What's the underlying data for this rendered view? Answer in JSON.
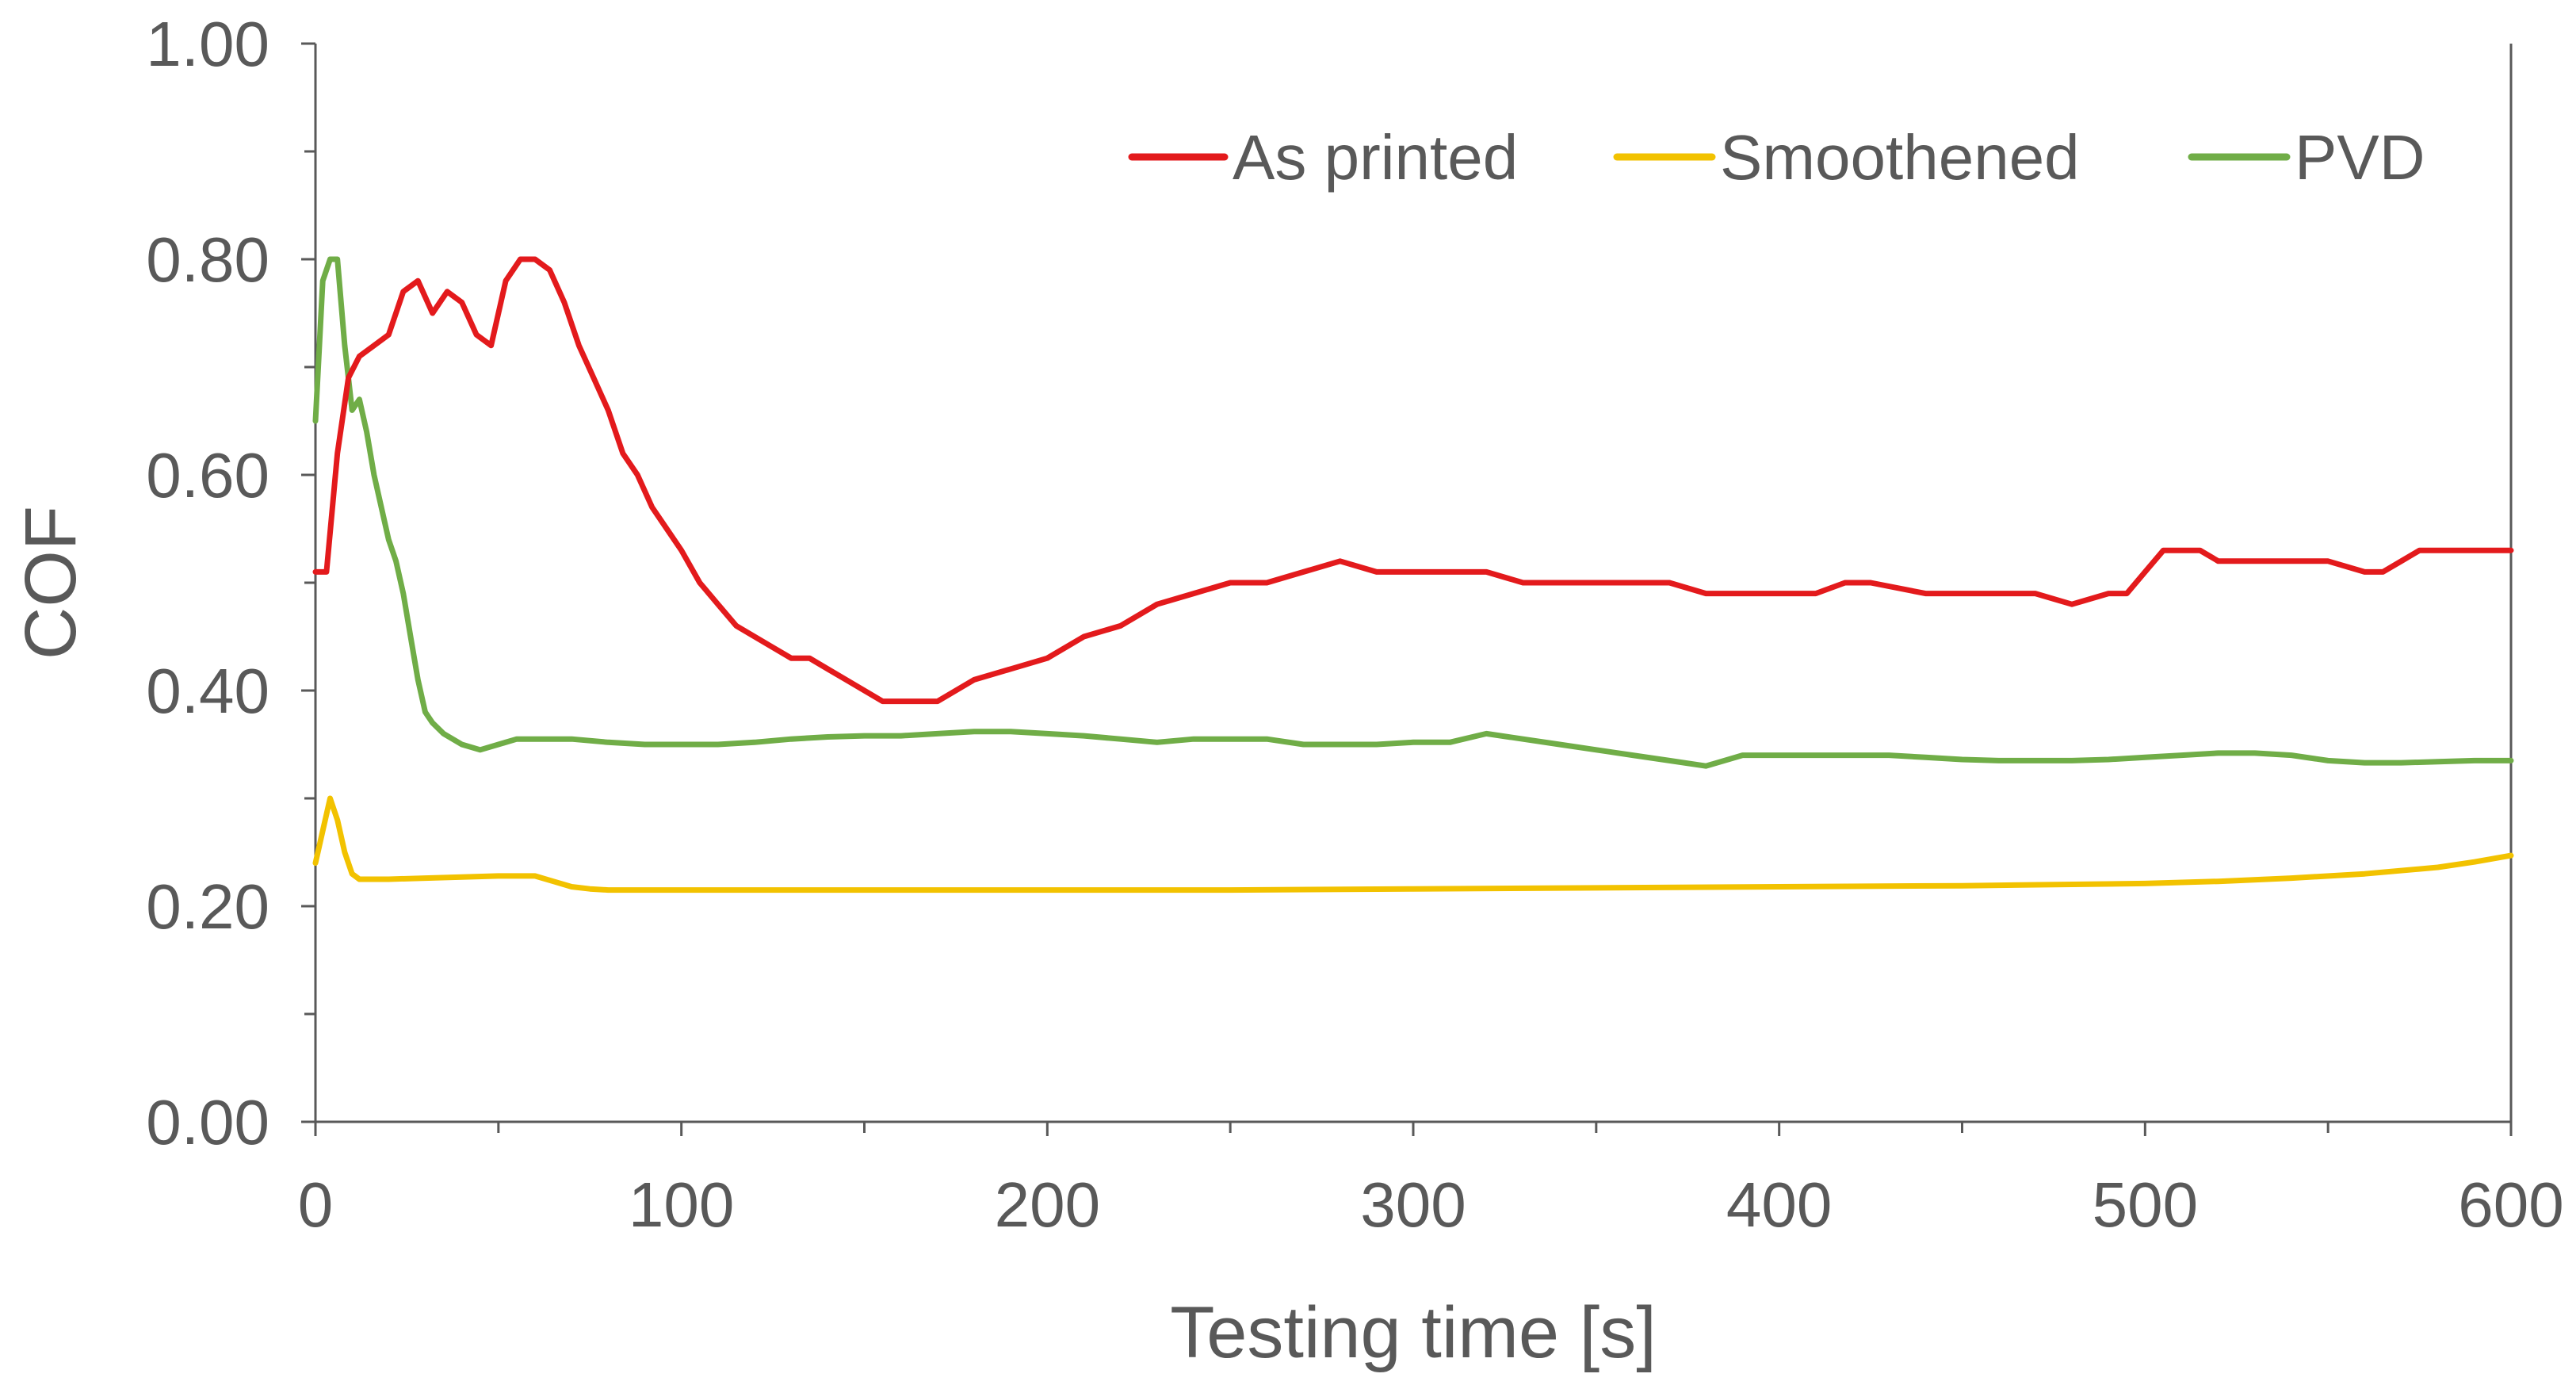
{
  "chart_data": {
    "type": "line",
    "title": "",
    "xlabel": "Testing time [s]",
    "ylabel": "COF",
    "xlim": [
      0,
      600
    ],
    "ylim": [
      0,
      1
    ],
    "x_ticks": [
      0,
      100,
      200,
      300,
      400,
      500,
      600
    ],
    "x_tick_labels": [
      "0",
      "100",
      "200",
      "300",
      "400",
      "500",
      "600"
    ],
    "y_ticks": [
      0,
      0.2,
      0.4,
      0.6,
      0.8,
      1.0
    ],
    "y_tick_labels": [
      "0.00",
      "0.20",
      "0.40",
      "0.60",
      "0.80",
      "1.00"
    ],
    "grid": false,
    "legend_position": "top-right",
    "series": [
      {
        "name": "As printed",
        "color": "#e31a1c",
        "x": [
          0,
          3,
          6,
          9,
          12,
          16,
          20,
          24,
          28,
          32,
          36,
          40,
          44,
          48,
          52,
          56,
          60,
          64,
          68,
          72,
          76,
          80,
          84,
          88,
          92,
          96,
          100,
          105,
          110,
          115,
          120,
          125,
          130,
          135,
          140,
          145,
          150,
          155,
          160,
          165,
          170,
          175,
          180,
          190,
          200,
          210,
          220,
          230,
          240,
          250,
          260,
          270,
          280,
          290,
          300,
          310,
          320,
          330,
          340,
          350,
          360,
          370,
          380,
          390,
          400,
          410,
          418,
          425,
          440,
          460,
          470,
          480,
          490,
          495,
          500,
          505,
          510,
          515,
          520,
          530,
          540,
          550,
          560,
          565,
          570,
          575,
          580,
          590,
          600
        ],
        "y": [
          0.51,
          0.51,
          0.62,
          0.69,
          0.71,
          0.72,
          0.73,
          0.77,
          0.78,
          0.75,
          0.77,
          0.76,
          0.73,
          0.72,
          0.78,
          0.8,
          0.8,
          0.79,
          0.76,
          0.72,
          0.69,
          0.66,
          0.62,
          0.6,
          0.57,
          0.55,
          0.53,
          0.5,
          0.48,
          0.46,
          0.45,
          0.44,
          0.43,
          0.43,
          0.42,
          0.41,
          0.4,
          0.39,
          0.39,
          0.39,
          0.39,
          0.4,
          0.41,
          0.42,
          0.43,
          0.45,
          0.46,
          0.48,
          0.49,
          0.5,
          0.5,
          0.51,
          0.52,
          0.51,
          0.51,
          0.51,
          0.51,
          0.5,
          0.5,
          0.5,
          0.5,
          0.5,
          0.49,
          0.49,
          0.49,
          0.49,
          0.5,
          0.5,
          0.49,
          0.49,
          0.49,
          0.48,
          0.49,
          0.49,
          0.51,
          0.53,
          0.53,
          0.53,
          0.52,
          0.52,
          0.52,
          0.52,
          0.51,
          0.51,
          0.52,
          0.53,
          0.53,
          0.53,
          0.53
        ]
      },
      {
        "name": "Smoothened",
        "color": "#f2c200",
        "x": [
          0,
          2,
          4,
          6,
          8,
          10,
          12,
          15,
          20,
          30,
          40,
          50,
          60,
          65,
          70,
          75,
          80,
          100,
          150,
          200,
          250,
          300,
          350,
          400,
          450,
          500,
          520,
          540,
          560,
          580,
          590,
          600
        ],
        "y": [
          0.24,
          0.27,
          0.3,
          0.28,
          0.25,
          0.23,
          0.225,
          0.225,
          0.225,
          0.226,
          0.227,
          0.228,
          0.228,
          0.223,
          0.218,
          0.216,
          0.215,
          0.215,
          0.215,
          0.215,
          0.215,
          0.216,
          0.217,
          0.218,
          0.219,
          0.221,
          0.223,
          0.226,
          0.23,
          0.236,
          0.241,
          0.247
        ]
      },
      {
        "name": "PVD",
        "color": "#70ad47",
        "x": [
          0,
          2,
          4,
          6,
          8,
          10,
          12,
          14,
          16,
          18,
          20,
          22,
          24,
          26,
          28,
          30,
          32,
          35,
          40,
          45,
          50,
          55,
          60,
          70,
          80,
          90,
          100,
          110,
          120,
          130,
          140,
          150,
          160,
          170,
          180,
          190,
          200,
          210,
          220,
          230,
          240,
          250,
          260,
          270,
          280,
          290,
          300,
          310,
          320,
          330,
          340,
          350,
          360,
          370,
          380,
          390,
          400,
          410,
          420,
          430,
          440,
          450,
          460,
          470,
          480,
          490,
          500,
          510,
          520,
          530,
          540,
          550,
          560,
          570,
          580,
          590,
          600
        ],
        "y": [
          0.65,
          0.78,
          0.8,
          0.8,
          0.72,
          0.66,
          0.67,
          0.64,
          0.6,
          0.57,
          0.54,
          0.52,
          0.49,
          0.45,
          0.41,
          0.38,
          0.37,
          0.36,
          0.35,
          0.345,
          0.35,
          0.355,
          0.355,
          0.355,
          0.352,
          0.35,
          0.35,
          0.35,
          0.352,
          0.355,
          0.357,
          0.358,
          0.358,
          0.36,
          0.362,
          0.362,
          0.36,
          0.358,
          0.355,
          0.352,
          0.355,
          0.355,
          0.355,
          0.35,
          0.35,
          0.35,
          0.352,
          0.352,
          0.36,
          0.355,
          0.35,
          0.345,
          0.34,
          0.335,
          0.33,
          0.34,
          0.34,
          0.34,
          0.34,
          0.34,
          0.338,
          0.336,
          0.335,
          0.335,
          0.335,
          0.336,
          0.338,
          0.34,
          0.342,
          0.342,
          0.34,
          0.335,
          0.333,
          0.333,
          0.334,
          0.335,
          0.335
        ]
      }
    ]
  }
}
